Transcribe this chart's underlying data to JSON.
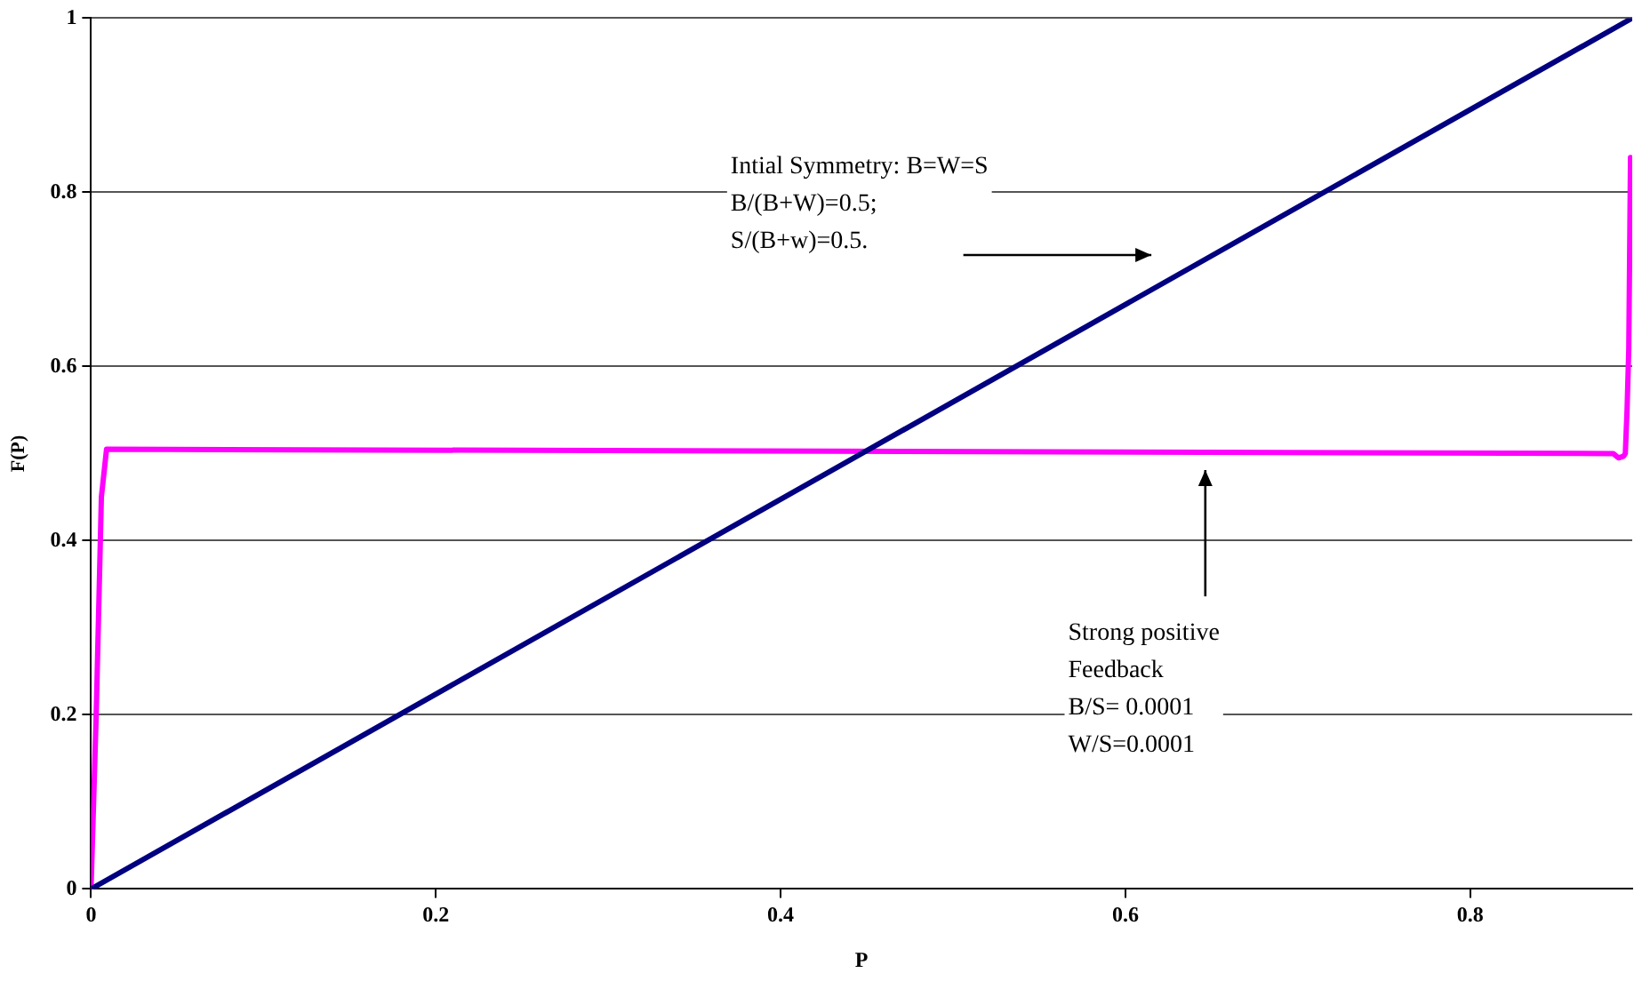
{
  "chart_data": {
    "type": "line",
    "xlabel": "P",
    "ylabel": "F(P)",
    "xlim": [
      0,
      0.894
    ],
    "xticks": [
      0,
      0.2,
      0.4,
      0.6,
      0.8
    ],
    "ylim": [
      0,
      1
    ],
    "yticks": [
      0,
      0.2,
      0.4,
      0.6,
      0.8,
      1
    ],
    "grid": "y",
    "marker": "none",
    "line_style": "solid",
    "series": [
      {
        "color": "#000080",
        "x": [
          0,
          0.894
        ],
        "values": [
          0,
          1
        ]
      },
      {
        "color": "#ff00ff",
        "x": [
          0,
          0.003,
          0.006,
          0.009,
          0.883,
          0.886,
          0.889,
          0.89,
          0.891,
          0.892,
          0.893
        ],
        "values": [
          0,
          0.2,
          0.45,
          0.505,
          0.5,
          0.495,
          0.497,
          0.5,
          0.55,
          0.62,
          0.84
        ]
      }
    ],
    "annotations": [
      "Intial Symmetry: B=W=S\nB/(B+W)=0.5;\nS/(B+w)=0.5.",
      "Strong positive\nFeedback\nB/S= 0.0001\nW/S=0.0001"
    ]
  }
}
